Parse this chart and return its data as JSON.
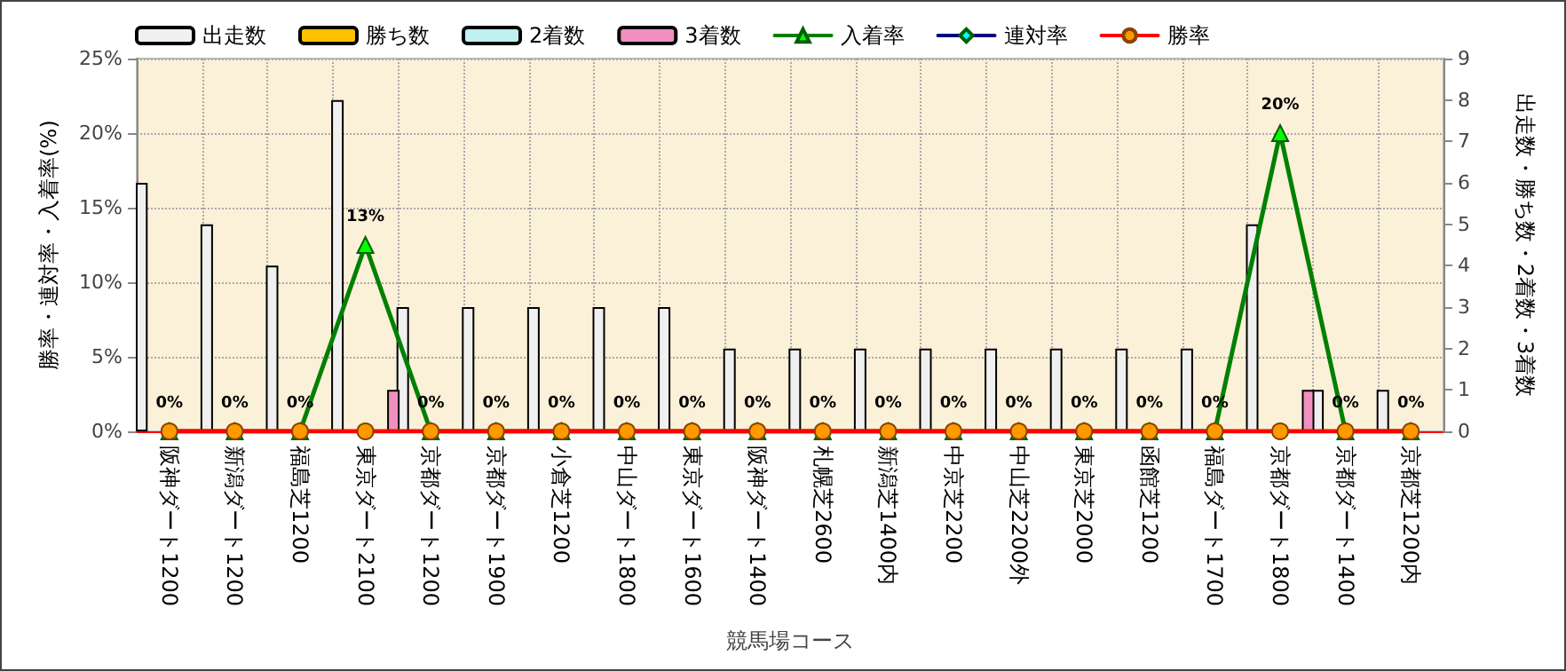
{
  "chart_data": {
    "type": "bar",
    "xlabel": "競馬場コース",
    "ylabel": "勝率・連対率・入着率(%)",
    "y2label": "出走数・勝ち数・2着数・3着数",
    "categories": [
      "阪神ダート1200",
      "新潟ダート1200",
      "福島芝1200",
      "東京ダート2100",
      "京都ダート1200",
      "京都ダート1900",
      "小倉芝1200",
      "中山ダート1800",
      "東京ダート1600",
      "阪神ダート1400",
      "札幌芝2600",
      "新潟芝1400内",
      "中京芝2200",
      "中山芝2200外",
      "東京芝2000",
      "函館芝1200",
      "福島ダート1700",
      "京都ダート1800",
      "京都ダート1400",
      "京都芝1200内"
    ],
    "series": [
      {
        "name": "出走数",
        "axis": "y2",
        "color": "#f0f0f0",
        "values": [
          6,
          5,
          4,
          8,
          3,
          3,
          3,
          3,
          3,
          2,
          2,
          2,
          2,
          2,
          2,
          2,
          2,
          5,
          1,
          1
        ]
      },
      {
        "name": "勝ち数",
        "axis": "y2",
        "color": "#ffc000",
        "values": [
          null,
          null,
          null,
          null,
          null,
          null,
          null,
          null,
          null,
          null,
          null,
          null,
          null,
          null,
          null,
          null,
          null,
          null,
          null,
          null
        ]
      },
      {
        "name": "2着数",
        "axis": "y2",
        "color": "#c0f0f0",
        "values": [
          null,
          null,
          null,
          null,
          null,
          null,
          null,
          null,
          null,
          null,
          null,
          null,
          null,
          null,
          null,
          null,
          null,
          null,
          null,
          null
        ]
      },
      {
        "name": "3着数",
        "axis": "y2",
        "color": "#f090c0",
        "values": [
          null,
          null,
          null,
          1,
          null,
          null,
          null,
          null,
          null,
          null,
          null,
          null,
          null,
          null,
          null,
          null,
          null,
          1,
          null,
          null
        ]
      },
      {
        "name": "入着率",
        "type": "line",
        "marker": "triangle",
        "color": "#008000",
        "values": [
          0,
          0,
          0,
          12.5,
          0,
          0,
          0,
          0,
          0,
          0,
          0,
          0,
          0,
          0,
          0,
          0,
          0,
          20,
          0,
          0
        ],
        "value_labels": [
          "0%",
          "0%",
          "0%",
          "13%",
          "0%",
          "0%",
          "0%",
          "0%",
          "0%",
          "0%",
          "0%",
          "0%",
          "0%",
          "0%",
          "0%",
          "0%",
          "0%",
          "20%",
          "0%",
          "0%"
        ]
      },
      {
        "name": "連対率",
        "type": "line",
        "marker": "diamond",
        "color": "#000080",
        "values": [
          null,
          null,
          null,
          null,
          null,
          null,
          null,
          null,
          null,
          null,
          null,
          null,
          null,
          null,
          null,
          null,
          null,
          null,
          null,
          null
        ]
      },
      {
        "name": "勝率",
        "type": "line",
        "marker": "circle",
        "color": "#ff0000",
        "values": [
          0,
          0,
          0,
          0,
          0,
          0,
          0,
          0,
          0,
          0,
          0,
          0,
          0,
          0,
          0,
          0,
          0,
          0,
          0,
          0
        ]
      }
    ],
    "ylim": [
      0,
      25
    ],
    "yticks": [
      {
        "value": 0,
        "label": "0%"
      },
      {
        "value": 5,
        "label": "5%"
      },
      {
        "value": 10,
        "label": "10%"
      },
      {
        "value": 15,
        "label": "15%"
      },
      {
        "value": 20,
        "label": "20%"
      },
      {
        "value": 25,
        "label": "25%"
      }
    ],
    "y2lim": [
      0,
      9
    ],
    "y2ticks": [
      0,
      1,
      2,
      3,
      4,
      5,
      6,
      7,
      8,
      9
    ],
    "grid": true,
    "legend": "top"
  }
}
